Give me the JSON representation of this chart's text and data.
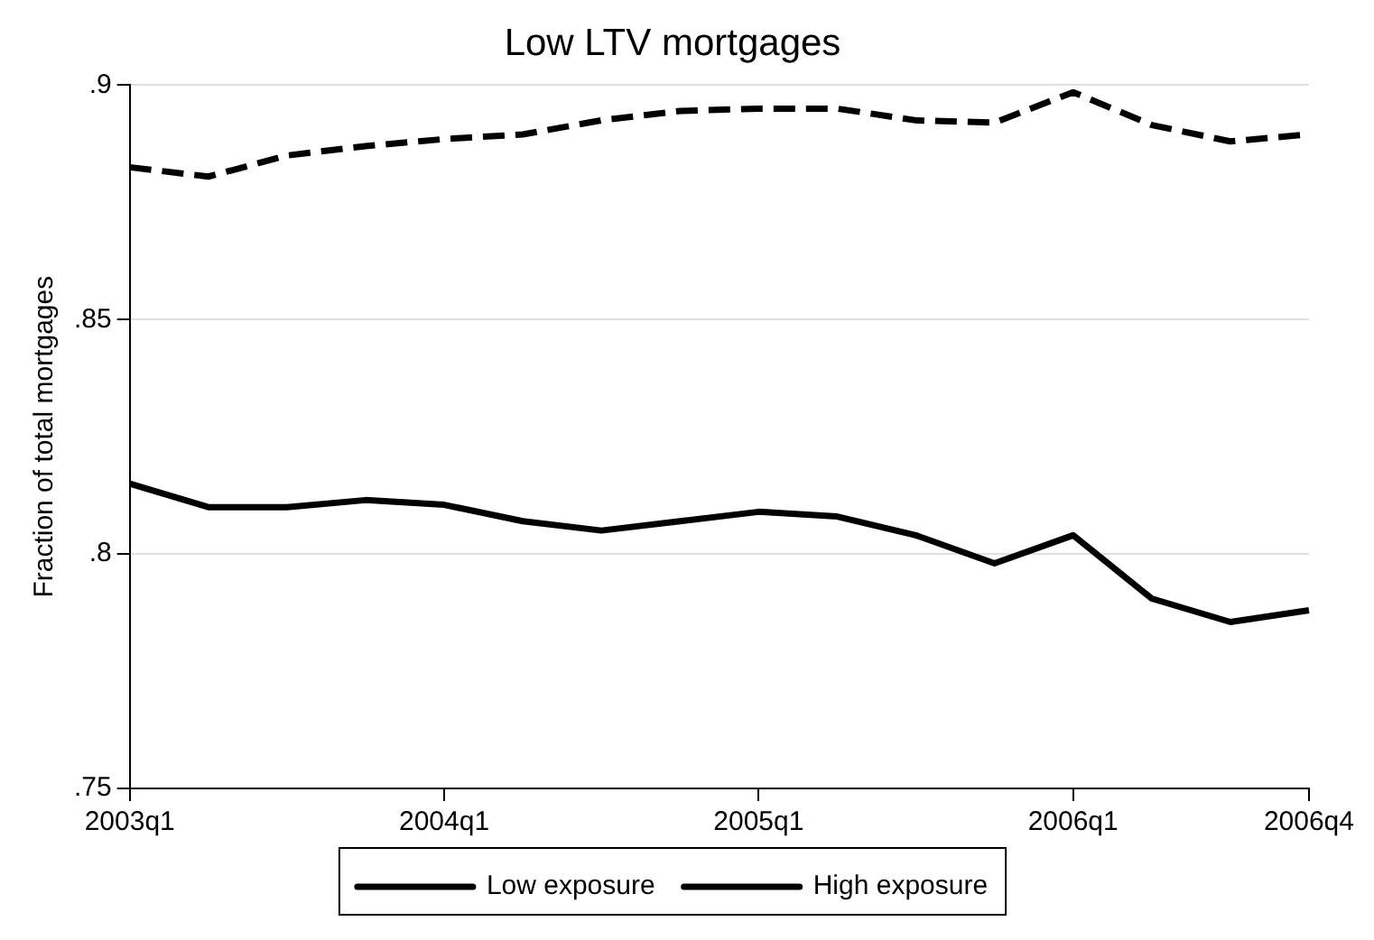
{
  "chart_data": {
    "type": "line",
    "title": "Low LTV mortgages",
    "ylabel": "Fraction of total mortgages",
    "categories": [
      "2003q1",
      null,
      null,
      null,
      "2004q1",
      null,
      null,
      null,
      "2005q1",
      null,
      null,
      null,
      "2006q1",
      null,
      null,
      "2006q4"
    ],
    "series": [
      {
        "name": "Low exposure",
        "color": "#000000",
        "line_style": "solid",
        "values": [
          0.815,
          0.81,
          0.81,
          0.8115,
          0.8105,
          0.807,
          0.805,
          0.807,
          0.809,
          0.808,
          0.804,
          0.798,
          0.804,
          0.7905,
          0.7855,
          0.788
        ]
      },
      {
        "name": "High exposure",
        "color": "#000000",
        "line_style": "dashed",
        "values": [
          0.8825,
          0.8805,
          0.885,
          0.887,
          0.8885,
          0.8895,
          0.8925,
          0.8945,
          0.895,
          0.895,
          0.8925,
          0.892,
          0.8985,
          0.8915,
          0.888,
          0.8895
        ]
      }
    ],
    "ylim": [
      0.75,
      0.9
    ],
    "yticks": [
      {
        "value": 0.75,
        "label": ".75"
      },
      {
        "value": 0.8,
        "label": ".8"
      },
      {
        "value": 0.85,
        "label": ".85"
      },
      {
        "value": 0.9,
        "label": ".9"
      }
    ],
    "grid": "y",
    "legend": "bottom",
    "marker": "none"
  }
}
